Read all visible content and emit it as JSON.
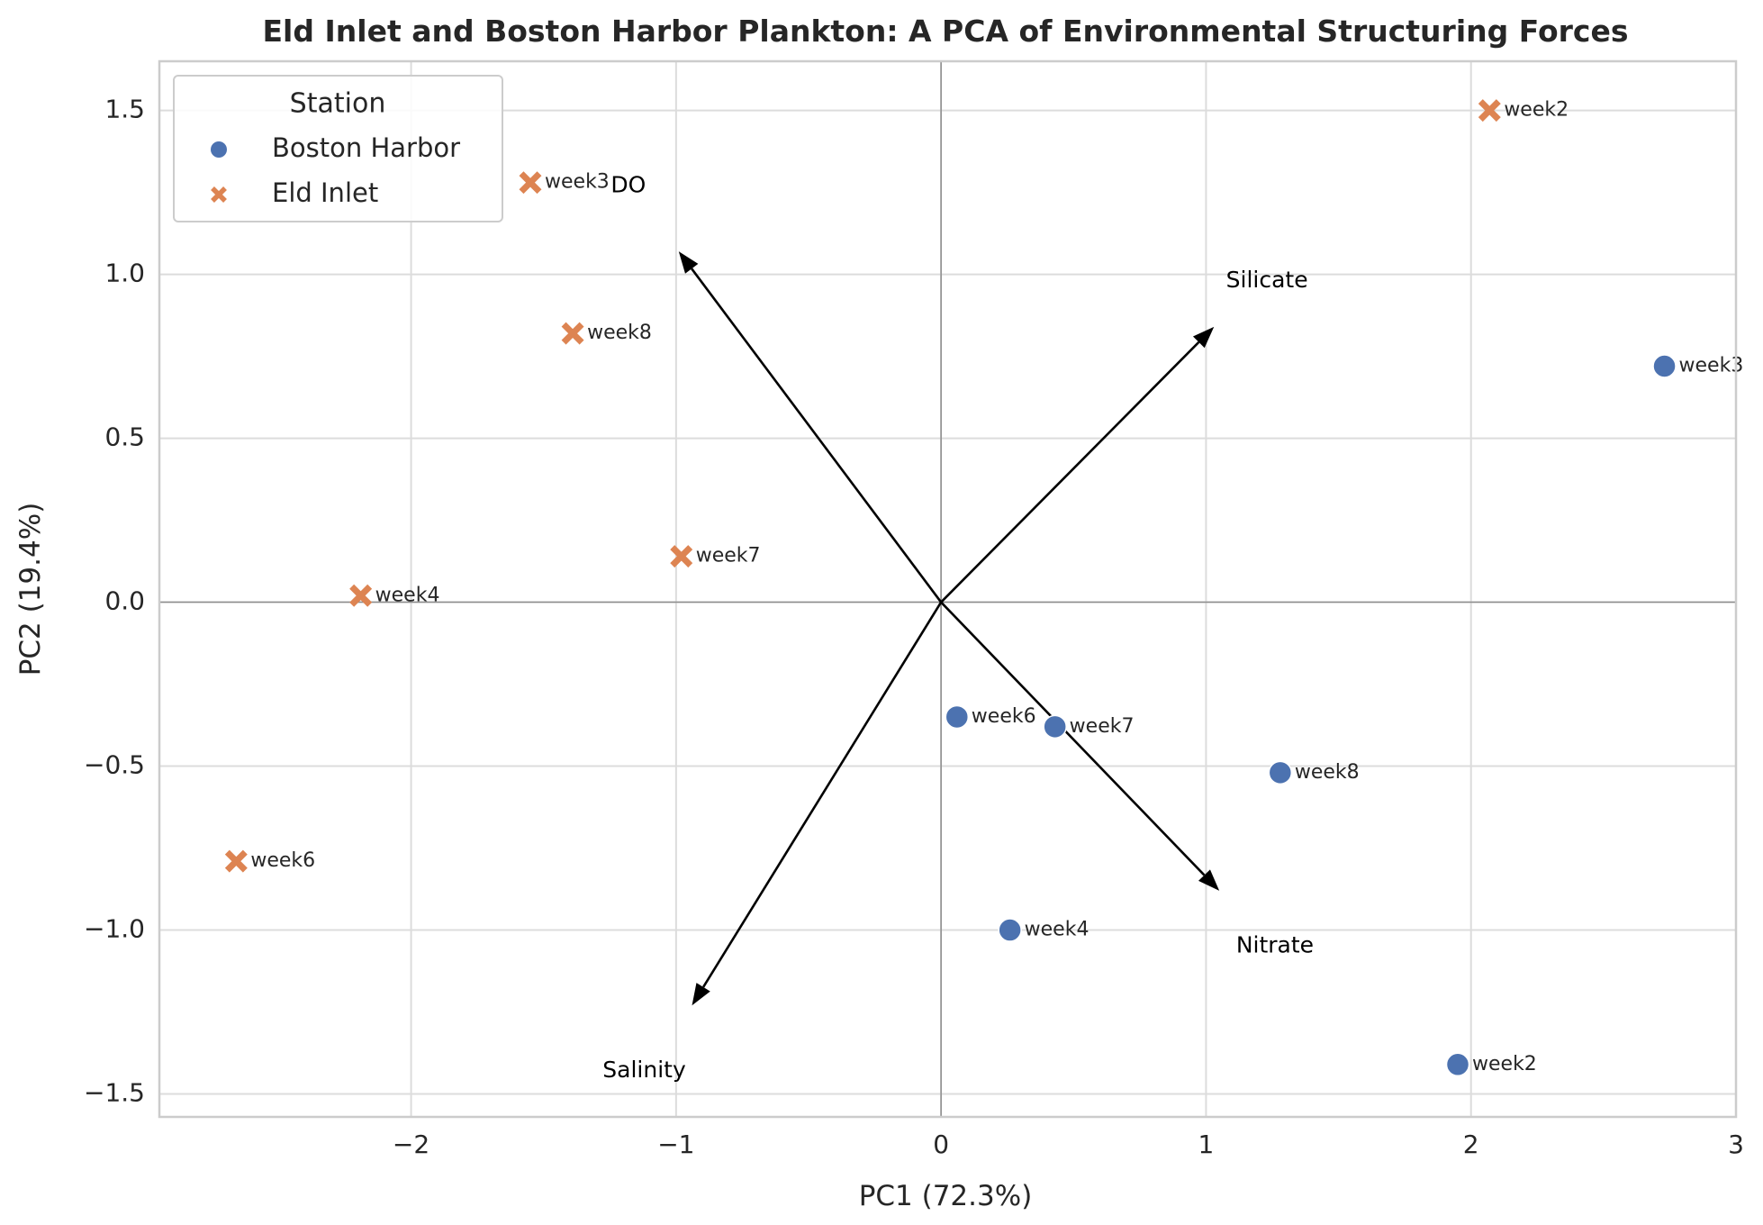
{
  "chart_data": {
    "type": "scatter",
    "title": "Eld Inlet and Boston Harbor Plankton: A PCA of Environmental Structuring Forces",
    "xlabel": "PC1 (72.3%)",
    "ylabel": "PC2 (19.4%)",
    "xlim": [
      -2.95,
      3.0
    ],
    "ylim": [
      -1.57,
      1.65
    ],
    "xticks": [
      -2,
      -1,
      0,
      1,
      2,
      3
    ],
    "yticks": [
      -1.5,
      -1.0,
      -0.5,
      0.0,
      0.5,
      1.0,
      1.5
    ],
    "xtick_labels": [
      "−2",
      "−1",
      "0",
      "1",
      "2",
      "3"
    ],
    "ytick_labels": [
      "−1.5",
      "−1.0",
      "−0.5",
      "0.0",
      "0.5",
      "1.0",
      "1.5"
    ],
    "grid": true,
    "legend": {
      "title": "Station",
      "placement": "top-left"
    },
    "series": [
      {
        "name": "Boston Harbor",
        "marker": "circle",
        "color": "#4c72b0",
        "points": [
          {
            "label": "week2",
            "x": 1.95,
            "y": -1.41
          },
          {
            "label": "week3",
            "x": 2.73,
            "y": 0.72
          },
          {
            "label": "week4",
            "x": 0.26,
            "y": -1.0
          },
          {
            "label": "week6",
            "x": 0.06,
            "y": -0.35
          },
          {
            "label": "week7",
            "x": 0.43,
            "y": -0.38
          },
          {
            "label": "week8",
            "x": 1.28,
            "y": -0.52
          }
        ]
      },
      {
        "name": "Eld Inlet",
        "marker": "x",
        "color": "#dd8452",
        "points": [
          {
            "label": "week2",
            "x": 2.07,
            "y": 1.5
          },
          {
            "label": "week3",
            "x": -1.55,
            "y": 1.28
          },
          {
            "label": "week4",
            "x": -2.19,
            "y": 0.02
          },
          {
            "label": "week6",
            "x": -2.66,
            "y": -0.79
          },
          {
            "label": "week7",
            "x": -0.98,
            "y": 0.14
          },
          {
            "label": "week8",
            "x": -1.39,
            "y": 0.82
          }
        ]
      }
    ],
    "loadings": [
      {
        "name": "DO",
        "x": -0.99,
        "y": 1.07,
        "label_x": -1.18,
        "label_y": 1.27
      },
      {
        "name": "Silicate",
        "x": 1.03,
        "y": 0.84,
        "label_x": 1.23,
        "label_y": 0.98
      },
      {
        "name": "Nitrate",
        "x": 1.05,
        "y": -0.88,
        "label_x": 1.26,
        "label_y": -1.05
      },
      {
        "name": "Salinity",
        "x": -0.94,
        "y": -1.23,
        "label_x": -1.12,
        "label_y": -1.43
      }
    ]
  }
}
